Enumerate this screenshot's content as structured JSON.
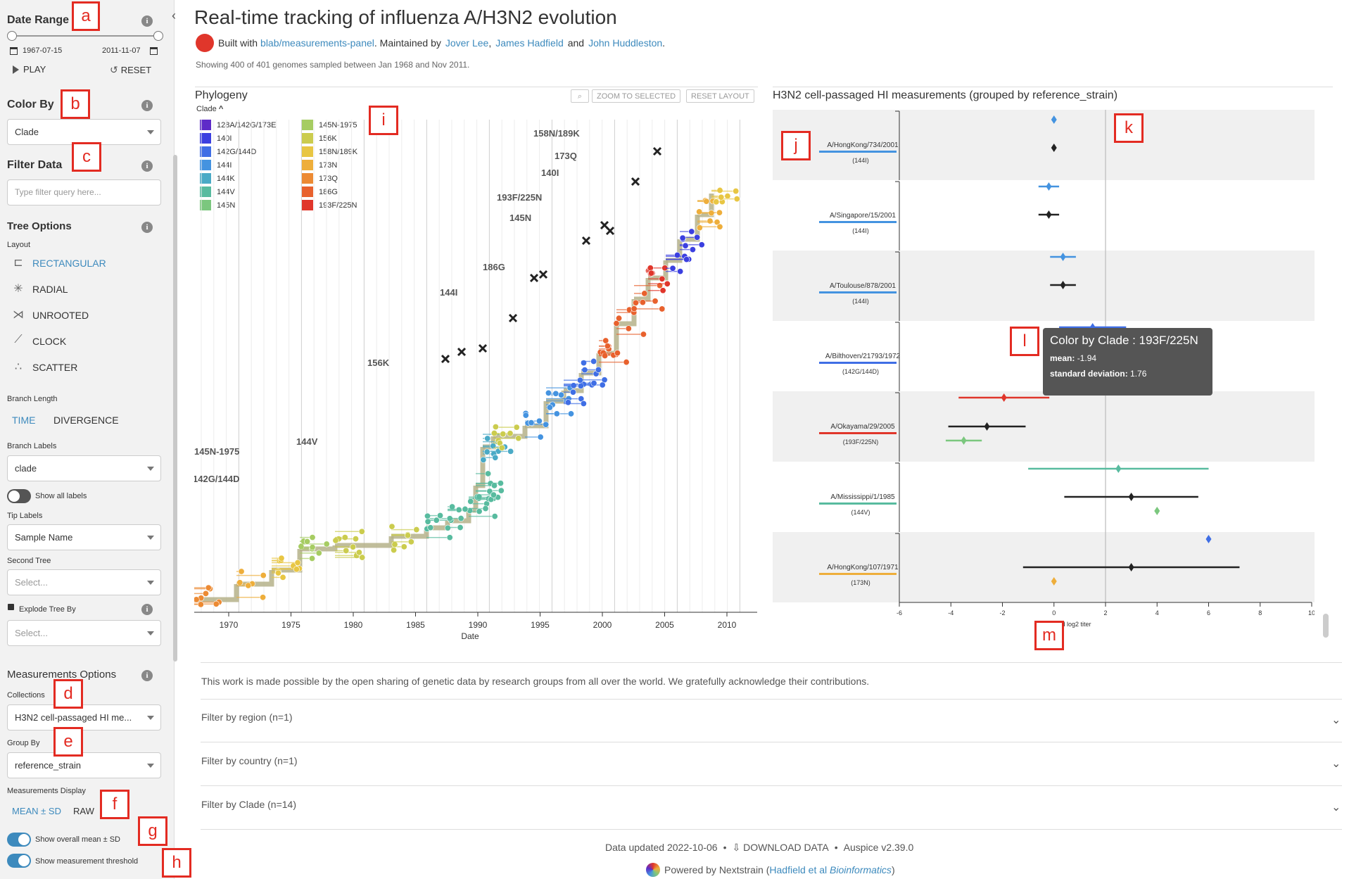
{
  "sidebar": {
    "date_range": {
      "title": "Date Range",
      "start": "1967-07-15",
      "end": "2011-11-07",
      "play_label": "PLAY",
      "reset_label": "RESET"
    },
    "color_by": {
      "title": "Color By",
      "value": "Clade"
    },
    "filter_data": {
      "title": "Filter Data",
      "placeholder": "Type filter query here..."
    },
    "tree_options": {
      "title": "Tree Options",
      "layout_label": "Layout",
      "layouts": [
        "RECTANGULAR",
        "RADIAL",
        "UNROOTED",
        "CLOCK",
        "SCATTER"
      ],
      "branch_length_label": "Branch Length",
      "branch_length_options": [
        "TIME",
        "DIVERGENCE"
      ],
      "branch_labels_label": "Branch Labels",
      "branch_labels_value": "clade",
      "show_all_labels": "Show all labels",
      "tip_labels_label": "Tip Labels",
      "tip_labels_value": "Sample Name",
      "second_tree_label": "Second Tree",
      "second_tree_placeholder": "Select...",
      "explode_label": "Explode Tree By",
      "explode_placeholder": "Select..."
    },
    "measurements": {
      "title": "Measurements Options",
      "collections_label": "Collections",
      "collections_value": "H3N2 cell-passaged HI me...",
      "group_by_label": "Group By",
      "group_by_value": "reference_strain",
      "display_label": "Measurements Display",
      "display_options": [
        "MEAN ± SD",
        "RAW"
      ],
      "show_overall": "Show overall mean ± SD",
      "show_threshold": "Show measurement threshold"
    }
  },
  "annotations": [
    "a",
    "b",
    "c",
    "d",
    "e",
    "f",
    "g",
    "h",
    "i",
    "j",
    "k",
    "l",
    "m"
  ],
  "header": {
    "title": "Real-time tracking of influenza A/H3N2 evolution",
    "built_with": "Built with",
    "built_link": "blab/measurements-panel",
    "maintained_by": ". Maintained by",
    "maintainer_1": "Jover Lee",
    "maintainer_2": "James Hadfield",
    "and": "and",
    "maintainer_3": "John Huddleston",
    "showing": "Showing 400 of 401 genomes sampled between Jan 1968 and Nov 2011."
  },
  "phylogeny": {
    "title": "Phylogeny",
    "legend_title": "Clade",
    "zoom_label": "ZOOM TO SELECTED",
    "reset_label": "RESET LAYOUT",
    "legend": [
      {
        "label": "128A/142G/173E",
        "color": "#5e2bc8"
      },
      {
        "label": "140I",
        "color": "#3b3fe0"
      },
      {
        "label": "142G/144D",
        "color": "#3f6ee5"
      },
      {
        "label": "144I",
        "color": "#4493e0"
      },
      {
        "label": "144K",
        "color": "#4aaac6"
      },
      {
        "label": "144V",
        "color": "#58bb9f"
      },
      {
        "label": "145N",
        "color": "#7bc77e"
      },
      {
        "label": "145N-1975",
        "color": "#a6cc62"
      },
      {
        "label": "156K",
        "color": "#cbcc4e"
      },
      {
        "label": "158N/189K",
        "color": "#e8c643"
      },
      {
        "label": "173N",
        "color": "#eeae3b"
      },
      {
        "label": "173Q",
        "color": "#ec8a33"
      },
      {
        "label": "186G",
        "color": "#e8612d"
      },
      {
        "label": "193F/225N",
        "color": "#e0362b"
      }
    ],
    "axis_label": "Date",
    "x_ticks": [
      "1970",
      "1975",
      "1980",
      "1985",
      "1990",
      "1995",
      "2000",
      "2005",
      "2010"
    ],
    "branch_labels": [
      "158N/189K",
      "173Q",
      "140I",
      "193F/225N",
      "145N",
      "186G",
      "144I",
      "156K",
      "144V",
      "145N-1975",
      "142G/144D"
    ]
  },
  "measurements_panel": {
    "title": "H3N2 cell-passaged HI measurements (grouped by reference_strain)",
    "x_label": "normalized log2 titer",
    "x_ticks": [
      "-6",
      "-4",
      "-2",
      "0",
      "2",
      "4",
      "6",
      "8",
      "10"
    ],
    "groups": [
      {
        "strain": "A/HongKong/734/2001",
        "clade": "(144I)",
        "color": "#4493e0"
      },
      {
        "strain": "A/Singapore/15/2001",
        "clade": "(144I)",
        "color": "#4493e0"
      },
      {
        "strain": "A/Toulouse/878/2001",
        "clade": "(144I)",
        "color": "#4493e0"
      },
      {
        "strain": "A/Bilthoven/21793/1972",
        "clade": "(142G/144D)",
        "color": "#3f6ee5"
      },
      {
        "strain": "A/Okayama/29/2005",
        "clade": "(193F/225N)",
        "color": "#e0362b"
      },
      {
        "strain": "A/Mississippi/1/1985",
        "clade": "(144V)",
        "color": "#58bb9f"
      },
      {
        "strain": "A/HongKong/107/1971",
        "clade": "(173N)",
        "color": "#eeae3b"
      }
    ],
    "tooltip": {
      "title": "Color by Clade : 193F/225N",
      "mean_label": "mean:",
      "mean_value": "-1.94",
      "sd_label": "standard deviation:",
      "sd_value": "1.76"
    }
  },
  "footer": {
    "acknowledgement": "This work is made possible by the open sharing of genetic data by research groups from all over the world. We gratefully acknowledge their contributions.",
    "filters": [
      "Filter by region (n=1)",
      "Filter by country (n=1)",
      "Filter by Clade (n=14)"
    ],
    "data_updated": "Data updated 2022-10-06",
    "download": "DOWNLOAD DATA",
    "version": "Auspice v2.39.0",
    "powered_by": "Powered by Nextstrain (",
    "citation_link": "Hadfield et al",
    "citation_journal": "Bioinformatics",
    "close_paren": ")"
  }
}
